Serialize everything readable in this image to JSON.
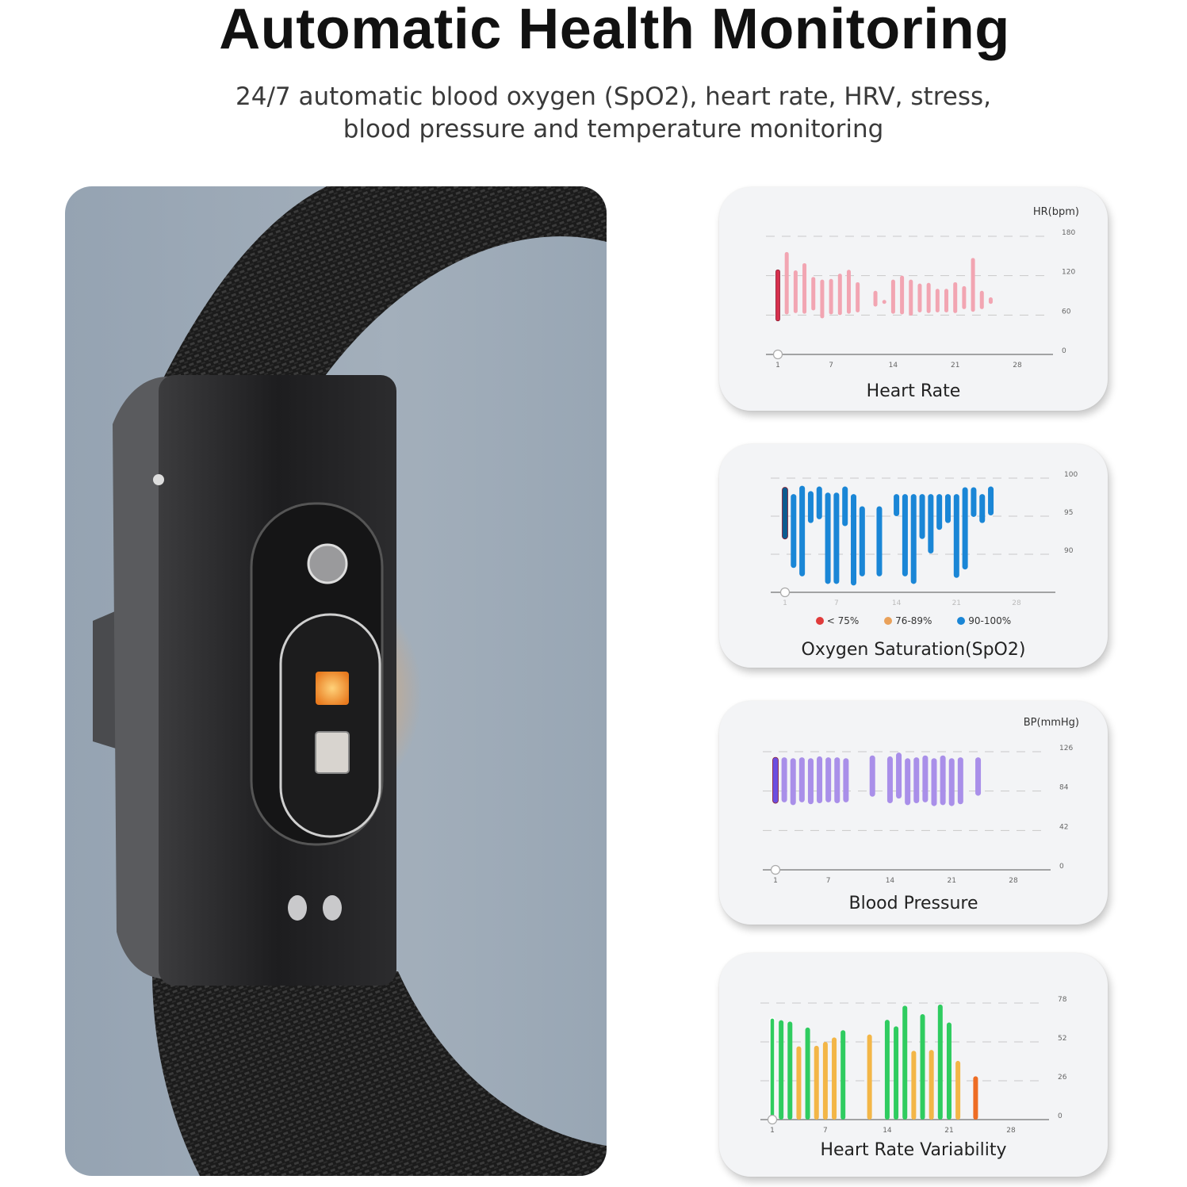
{
  "header": {
    "title": "Automatic Health Monitoring",
    "subtitle_line1": "24/7 automatic blood oxygen (SpO2), heart rate, HRV, stress,",
    "subtitle_line2": "blood pressure and temperature monitoring"
  },
  "colors": {
    "hr_bar": "#f2a5b2",
    "hr_highlight": "#d8304e",
    "spo2_bar": "#1a86d6",
    "spo2_highlight": "#0d5a8f",
    "bp_bar": "#a98fe9",
    "bp_highlight": "#6b4ee0",
    "hrv_green": "#2fcc60",
    "hrv_yellow": "#f3b647",
    "hrv_orange": "#ee6d24",
    "legend_red": "#e03b3b",
    "legend_orange": "#e9a15a",
    "legend_blue": "#1a86d6"
  },
  "chart_data": [
    {
      "type": "bar",
      "title": "Heart Rate",
      "ylabel": "HR(bpm)",
      "ylim": [
        0,
        180
      ],
      "yticks": [
        "180",
        "120",
        "60",
        "0"
      ],
      "xticks": [
        "1",
        "7",
        "14",
        "21",
        "28"
      ],
      "grid": true,
      "bars": [
        {
          "day": 1,
          "low": 51,
          "high": 129,
          "highlight": true
        },
        {
          "day": 2,
          "low": 61,
          "high": 156
        },
        {
          "day": 3,
          "low": 63,
          "high": 128
        },
        {
          "day": 4,
          "low": 62,
          "high": 139
        },
        {
          "day": 5,
          "low": 67,
          "high": 118
        },
        {
          "day": 6,
          "low": 55,
          "high": 114
        },
        {
          "day": 7,
          "low": 61,
          "high": 115
        },
        {
          "day": 8,
          "low": 60,
          "high": 123
        },
        {
          "day": 9,
          "low": 62,
          "high": 129
        },
        {
          "day": 10,
          "low": 64,
          "high": 110
        },
        {
          "day": 12,
          "low": 73,
          "high": 97
        },
        {
          "day": 13,
          "low": 79,
          "high": 83
        },
        {
          "day": 14,
          "low": 62,
          "high": 114
        },
        {
          "day": 15,
          "low": 61,
          "high": 120
        },
        {
          "day": 16,
          "low": 59,
          "high": 114
        },
        {
          "day": 17,
          "low": 64,
          "high": 108
        },
        {
          "day": 18,
          "low": 63,
          "high": 109
        },
        {
          "day": 19,
          "low": 64,
          "high": 100
        },
        {
          "day": 20,
          "low": 64,
          "high": 100
        },
        {
          "day": 21,
          "low": 63,
          "high": 110
        },
        {
          "day": 22,
          "low": 69,
          "high": 104
        },
        {
          "day": 23,
          "low": 65,
          "high": 147
        },
        {
          "day": 24,
          "low": 69,
          "high": 97
        },
        {
          "day": 25,
          "low": 77,
          "high": 87
        }
      ]
    },
    {
      "type": "bar",
      "title": "Oxygen Saturation(SpO2)",
      "ylim": [
        85,
        100
      ],
      "yticks": [
        "100",
        "95",
        "90"
      ],
      "xticks": [
        "1",
        "7",
        "14",
        "21",
        "28"
      ],
      "grid": true,
      "legend": [
        {
          "label": "< 75%",
          "color": "legend_red"
        },
        {
          "label": "76-89%",
          "color": "legend_orange"
        },
        {
          "label": "90-100%",
          "color": "legend_blue"
        }
      ],
      "legend_position": "bottom",
      "bars": [
        {
          "day": 1,
          "low": 92.0,
          "high": 98.8,
          "highlight": true
        },
        {
          "day": 2,
          "low": 88.2,
          "high": 97.9
        },
        {
          "day": 3,
          "low": 87.1,
          "high": 99.0
        },
        {
          "day": 4,
          "low": 94.1,
          "high": 98.3
        },
        {
          "day": 5,
          "low": 94.6,
          "high": 98.9
        },
        {
          "day": 6,
          "low": 86.1,
          "high": 98.1
        },
        {
          "day": 7,
          "low": 86.1,
          "high": 98.1
        },
        {
          "day": 8,
          "low": 93.7,
          "high": 98.9
        },
        {
          "day": 9,
          "low": 85.9,
          "high": 97.9
        },
        {
          "day": 10,
          "low": 87.1,
          "high": 96.3
        },
        {
          "day": 12,
          "low": 87.1,
          "high": 96.3
        },
        {
          "day": 14,
          "low": 95.0,
          "high": 97.9
        },
        {
          "day": 15,
          "low": 87.1,
          "high": 97.9
        },
        {
          "day": 16,
          "low": 86.1,
          "high": 97.9
        },
        {
          "day": 17,
          "low": 92.0,
          "high": 97.9
        },
        {
          "day": 18,
          "low": 90.1,
          "high": 97.9
        },
        {
          "day": 19,
          "low": 93.2,
          "high": 97.9
        },
        {
          "day": 20,
          "low": 94.1,
          "high": 97.9
        },
        {
          "day": 21,
          "low": 86.9,
          "high": 97.9
        },
        {
          "day": 22,
          "low": 88.0,
          "high": 98.8
        },
        {
          "day": 23,
          "low": 94.9,
          "high": 98.8
        },
        {
          "day": 24,
          "low": 94.1,
          "high": 97.9
        },
        {
          "day": 25,
          "low": 95.1,
          "high": 98.9
        }
      ]
    },
    {
      "type": "bar",
      "title": "Blood Pressure",
      "ylabel": "BP(mmHg)",
      "ylim": [
        0,
        126
      ],
      "yticks": [
        "126",
        "84",
        "42",
        "0"
      ],
      "xticks": [
        "1",
        "7",
        "14",
        "21",
        "28"
      ],
      "grid": true,
      "bars": [
        {
          "day": 1,
          "low": 71,
          "high": 120,
          "highlight": true
        },
        {
          "day": 2,
          "low": 72,
          "high": 120
        },
        {
          "day": 3,
          "low": 69,
          "high": 119
        },
        {
          "day": 4,
          "low": 72,
          "high": 120
        },
        {
          "day": 5,
          "low": 70,
          "high": 119
        },
        {
          "day": 6,
          "low": 71,
          "high": 121
        },
        {
          "day": 7,
          "low": 72,
          "high": 120
        },
        {
          "day": 8,
          "low": 71,
          "high": 120
        },
        {
          "day": 9,
          "low": 72,
          "high": 119
        },
        {
          "day": 12,
          "low": 78,
          "high": 122
        },
        {
          "day": 14,
          "low": 71,
          "high": 121
        },
        {
          "day": 15,
          "low": 76,
          "high": 125
        },
        {
          "day": 16,
          "low": 69,
          "high": 119
        },
        {
          "day": 17,
          "low": 71,
          "high": 120
        },
        {
          "day": 18,
          "low": 72,
          "high": 122
        },
        {
          "day": 19,
          "low": 68,
          "high": 119
        },
        {
          "day": 20,
          "low": 69,
          "high": 122
        },
        {
          "day": 21,
          "low": 68,
          "high": 119
        },
        {
          "day": 22,
          "low": 70,
          "high": 120
        },
        {
          "day": 24,
          "low": 79,
          "high": 120
        }
      ]
    },
    {
      "type": "bar",
      "title": "Heart Rate Variability",
      "ylim": [
        0,
        78
      ],
      "yticks": [
        "78",
        "52",
        "26",
        "0"
      ],
      "xticks": [
        "1",
        "7",
        "14",
        "21",
        "28"
      ],
      "grid": true,
      "bars": [
        {
          "day": 1,
          "value": 68,
          "level": "hrv_green",
          "highlight": true
        },
        {
          "day": 2,
          "value": 66.5,
          "level": "hrv_green"
        },
        {
          "day": 3,
          "value": 65.6,
          "level": "hrv_green"
        },
        {
          "day": 4,
          "value": 49,
          "level": "hrv_yellow"
        },
        {
          "day": 5,
          "value": 61.6,
          "level": "hrv_green"
        },
        {
          "day": 6,
          "value": 49.4,
          "level": "hrv_yellow"
        },
        {
          "day": 7,
          "value": 52,
          "level": "hrv_yellow"
        },
        {
          "day": 8,
          "value": 55,
          "level": "hrv_yellow"
        },
        {
          "day": 9,
          "value": 59.8,
          "level": "hrv_green"
        },
        {
          "day": 12,
          "value": 57,
          "level": "hrv_yellow"
        },
        {
          "day": 14,
          "value": 66.8,
          "level": "hrv_green"
        },
        {
          "day": 15,
          "value": 62.4,
          "level": "hrv_green"
        },
        {
          "day": 16,
          "value": 76.2,
          "level": "hrv_green"
        },
        {
          "day": 17,
          "value": 46,
          "level": "hrv_yellow"
        },
        {
          "day": 18,
          "value": 70.6,
          "level": "hrv_green"
        },
        {
          "day": 19,
          "value": 46.6,
          "level": "hrv_yellow"
        },
        {
          "day": 20,
          "value": 77,
          "level": "hrv_green"
        },
        {
          "day": 21,
          "value": 65,
          "level": "hrv_green"
        },
        {
          "day": 22,
          "value": 39.3,
          "level": "hrv_yellow"
        },
        {
          "day": 24,
          "value": 29,
          "level": "hrv_orange"
        }
      ]
    }
  ]
}
